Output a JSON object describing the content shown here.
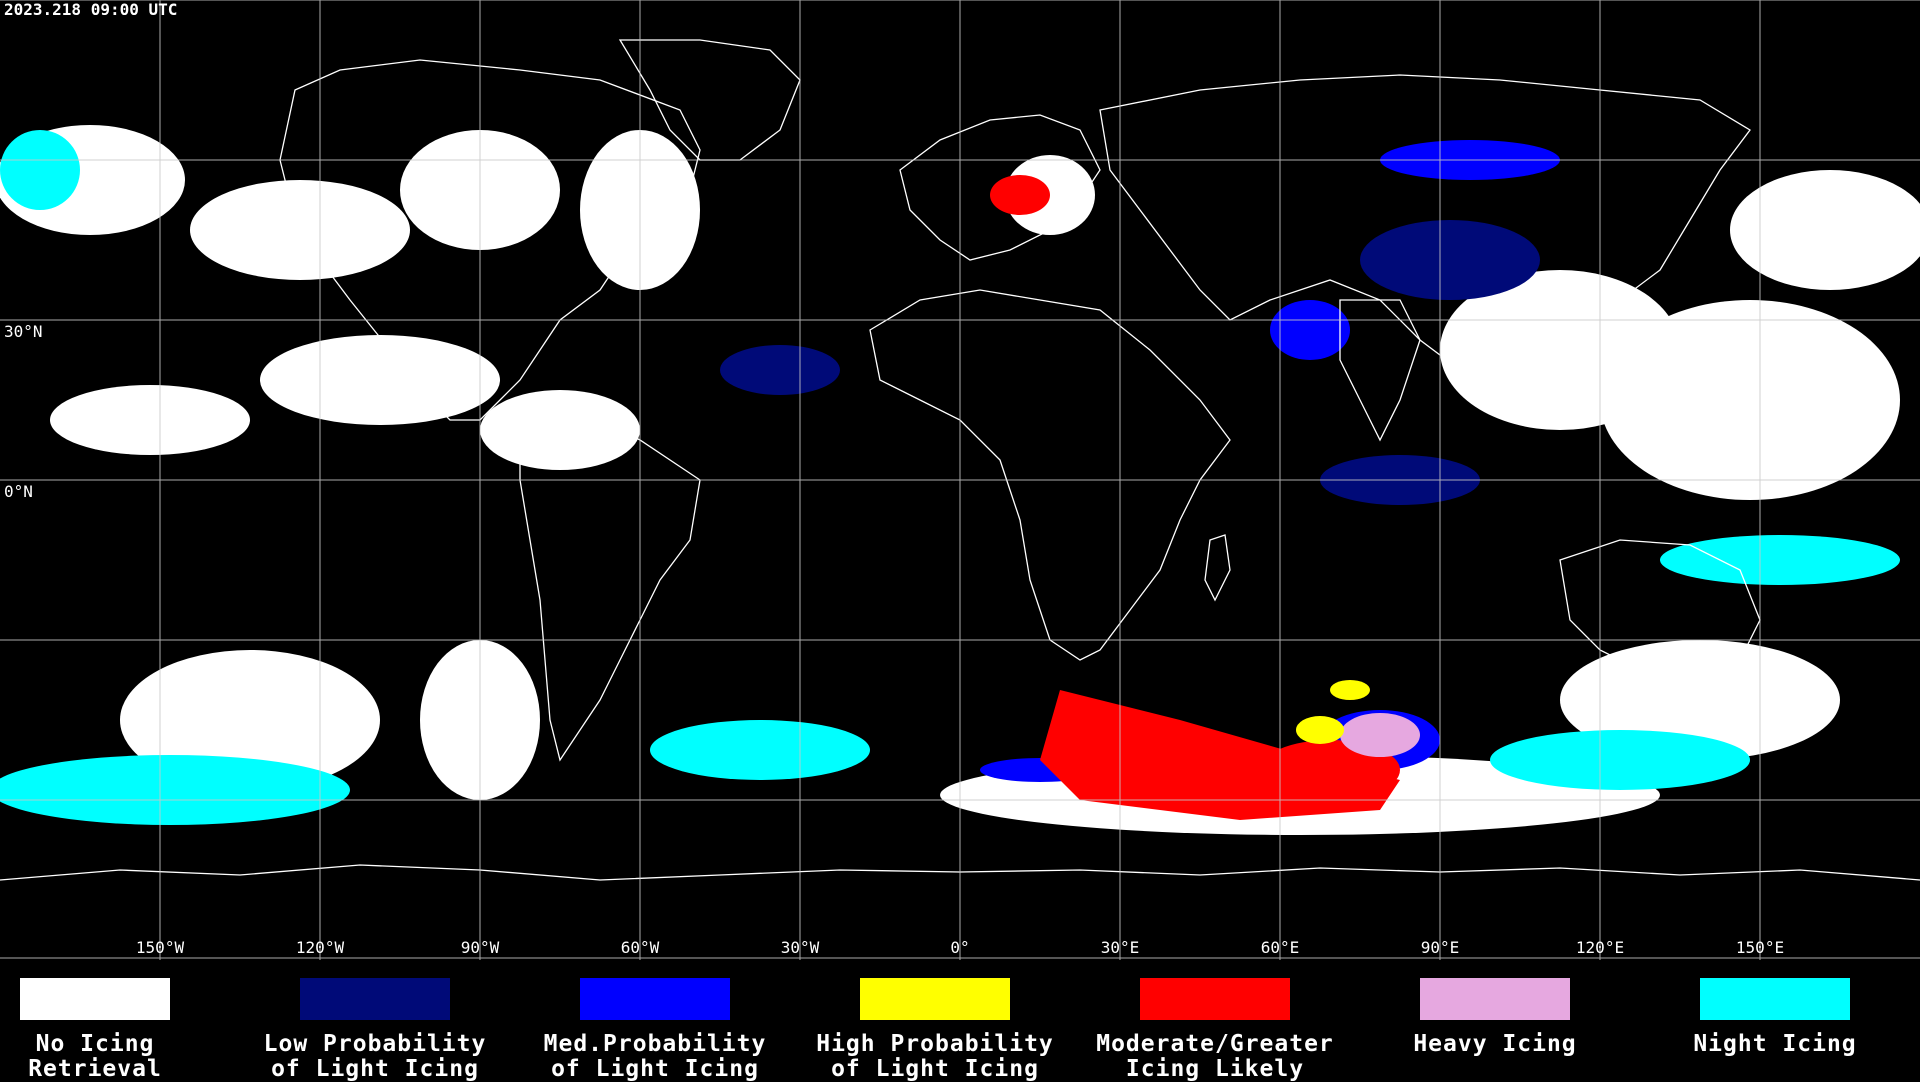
{
  "timestamp": "2023.218 09:00 UTC",
  "lon_labels": [
    "150°W",
    "120°W",
    "90°W",
    "60°W",
    "30°W",
    "0°",
    "30°E",
    "60°E",
    "90°E",
    "120°E",
    "150°E"
  ],
  "lat_labels": [
    "30°N",
    "0°N"
  ],
  "legend": [
    {
      "label": "No Icing\nRetrieval",
      "color": "#ffffff"
    },
    {
      "label": "Low Probability\nof Light Icing",
      "color": "#000a78"
    },
    {
      "label": "Med.Probability\nof Light Icing",
      "color": "#0000ff"
    },
    {
      "label": "High Probability\nof Light Icing",
      "color": "#ffff00"
    },
    {
      "label": "Moderate/Greater\nIcing Likely",
      "color": "#ff0000"
    },
    {
      "label": "Heavy Icing",
      "color": "#e6a8e0"
    },
    {
      "label": "Night Icing",
      "color": "#00ffff"
    }
  ]
}
